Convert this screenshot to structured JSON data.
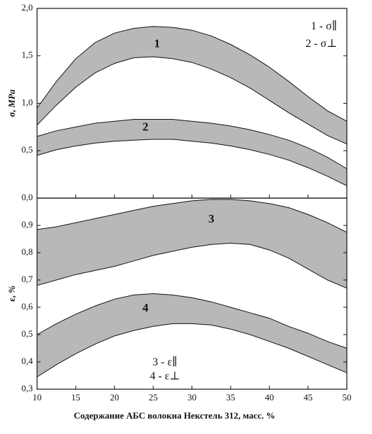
{
  "chart_data": [
    {
      "type": "area",
      "panel": "top",
      "ylabel_symbol": "σ,",
      "ylabel_unit": "MPa",
      "ylim": [
        0,
        2.0
      ],
      "yticks": [
        "0,0",
        "0,5",
        "1,0",
        "1,5",
        "2,0"
      ],
      "ytick_values": [
        0,
        0.5,
        1.0,
        1.5,
        2.0
      ],
      "xlim": [
        10,
        50
      ],
      "legend_placement": "top-right",
      "legend": [
        "1 - σ∥",
        "2 - σ⊥"
      ],
      "series": [
        {
          "name": "1",
          "label_pos": [
            25.5,
            1.62
          ],
          "x": [
            10,
            12.5,
            15,
            17.5,
            20,
            22.5,
            25,
            27.5,
            30,
            32.5,
            35,
            37.5,
            40,
            42.5,
            45,
            47.5,
            50
          ],
          "upper": [
            0.95,
            1.23,
            1.47,
            1.64,
            1.74,
            1.79,
            1.81,
            1.8,
            1.77,
            1.71,
            1.62,
            1.51,
            1.38,
            1.23,
            1.07,
            0.92,
            0.81
          ],
          "lower": [
            0.77,
            0.98,
            1.17,
            1.32,
            1.42,
            1.48,
            1.49,
            1.47,
            1.43,
            1.36,
            1.27,
            1.16,
            1.03,
            0.9,
            0.78,
            0.66,
            0.57
          ]
        },
        {
          "name": "2",
          "label_pos": [
            24,
            0.74
          ],
          "x": [
            10,
            12.5,
            15,
            17.5,
            20,
            22.5,
            25,
            27.5,
            30,
            32.5,
            35,
            37.5,
            40,
            42.5,
            45,
            47.5,
            50
          ],
          "upper": [
            0.65,
            0.71,
            0.75,
            0.79,
            0.81,
            0.83,
            0.83,
            0.83,
            0.81,
            0.79,
            0.76,
            0.72,
            0.67,
            0.61,
            0.53,
            0.43,
            0.31
          ],
          "lower": [
            0.45,
            0.51,
            0.55,
            0.58,
            0.6,
            0.61,
            0.62,
            0.62,
            0.6,
            0.58,
            0.55,
            0.51,
            0.46,
            0.4,
            0.32,
            0.23,
            0.13
          ]
        }
      ]
    },
    {
      "type": "area",
      "panel": "bottom",
      "ylabel_symbol": "ε,",
      "ylabel_unit": "%",
      "ylim": [
        0.3,
        1.0
      ],
      "yticks": [
        "0,3",
        "0,4",
        "0,5",
        "0,6",
        "0,7",
        "0,8",
        "0,9",
        "1,0"
      ],
      "ytick_values": [
        0.3,
        0.4,
        0.5,
        0.6,
        0.7,
        0.8,
        0.9,
        1.0
      ],
      "xlim": [
        10,
        50
      ],
      "xticks": [
        "10",
        "15",
        "20",
        "25",
        "30",
        "35",
        "40",
        "45",
        "50"
      ],
      "xtick_values": [
        10,
        15,
        20,
        25,
        30,
        35,
        40,
        45,
        50
      ],
      "xlabel": "Содержание АБС волокна Некстель 312, масс. %",
      "legend_placement": "bottom-center",
      "legend": [
        "3 - ε∥",
        "4 - ε⊥"
      ],
      "series": [
        {
          "name": "3",
          "label_pos": [
            32.5,
            0.92
          ],
          "x": [
            10,
            12.5,
            15,
            17.5,
            20,
            22.5,
            25,
            27.5,
            30,
            32.5,
            35,
            37.5,
            40,
            42.5,
            45,
            47.5,
            50
          ],
          "upper": [
            0.885,
            0.895,
            0.91,
            0.925,
            0.94,
            0.955,
            0.97,
            0.98,
            0.99,
            0.995,
            0.995,
            0.99,
            0.98,
            0.965,
            0.94,
            0.91,
            0.875
          ],
          "lower": [
            0.68,
            0.7,
            0.72,
            0.735,
            0.75,
            0.77,
            0.79,
            0.805,
            0.82,
            0.83,
            0.835,
            0.83,
            0.81,
            0.78,
            0.74,
            0.7,
            0.67
          ]
        },
        {
          "name": "4",
          "label_pos": [
            24,
            0.595
          ],
          "x": [
            10,
            12.5,
            15,
            17.5,
            20,
            22.5,
            25,
            27.5,
            30,
            32.5,
            35,
            37.5,
            40,
            42.5,
            45,
            47.5,
            50
          ],
          "upper": [
            0.5,
            0.54,
            0.575,
            0.605,
            0.63,
            0.645,
            0.65,
            0.645,
            0.635,
            0.62,
            0.6,
            0.58,
            0.56,
            0.53,
            0.505,
            0.475,
            0.45
          ],
          "lower": [
            0.345,
            0.39,
            0.43,
            0.465,
            0.495,
            0.515,
            0.53,
            0.54,
            0.54,
            0.535,
            0.52,
            0.5,
            0.475,
            0.45,
            0.42,
            0.39,
            0.36
          ]
        }
      ]
    }
  ]
}
